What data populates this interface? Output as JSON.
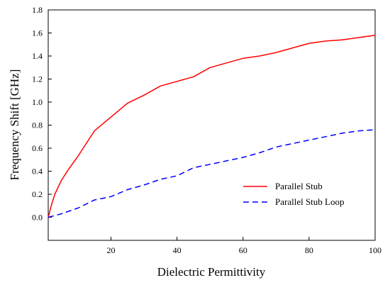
{
  "chart_data": {
    "type": "line",
    "xlabel": "Dielectric Permittivity",
    "ylabel": "Frequency Shift [GHz]",
    "xlim": [
      1,
      100
    ],
    "ylim": [
      -0.2,
      1.8
    ],
    "x_ticks": [
      20,
      40,
      60,
      80,
      100
    ],
    "x_tick_labels": [
      "20",
      "40",
      "60",
      "80",
      "100"
    ],
    "y_ticks": [
      0.0,
      0.2,
      0.4,
      0.6,
      0.8,
      1.0,
      1.2,
      1.4,
      1.6,
      1.8
    ],
    "y_tick_labels": [
      "0.0",
      "0.2",
      "0.4",
      "0.6",
      "0.8",
      "1.0",
      "1.2",
      "1.4",
      "1.6",
      "1.8"
    ],
    "grid": false,
    "legend_position": "lower-right",
    "series": [
      {
        "name": "Parallel Stub",
        "color": "#ff0000",
        "dash": "solid",
        "x": [
          1,
          2,
          3,
          5,
          7,
          10,
          15,
          20,
          25,
          30,
          35,
          40,
          45,
          50,
          55,
          60,
          65,
          70,
          75,
          80,
          85,
          90,
          95,
          100
        ],
        "y": [
          0.0,
          0.11,
          0.2,
          0.32,
          0.41,
          0.53,
          0.75,
          0.87,
          0.99,
          1.06,
          1.14,
          1.18,
          1.22,
          1.3,
          1.34,
          1.38,
          1.4,
          1.43,
          1.47,
          1.51,
          1.53,
          1.54,
          1.56,
          1.58
        ]
      },
      {
        "name": "Parallel Stub Loop",
        "color": "#0000ff",
        "dash": "dashed",
        "x": [
          1,
          5,
          10,
          15,
          20,
          25,
          30,
          35,
          40,
          45,
          50,
          55,
          60,
          65,
          70,
          75,
          80,
          85,
          90,
          95,
          100
        ],
        "y": [
          0.0,
          0.03,
          0.08,
          0.15,
          0.18,
          0.24,
          0.28,
          0.33,
          0.36,
          0.43,
          0.46,
          0.49,
          0.52,
          0.56,
          0.61,
          0.64,
          0.67,
          0.7,
          0.73,
          0.75,
          0.76
        ]
      }
    ]
  }
}
